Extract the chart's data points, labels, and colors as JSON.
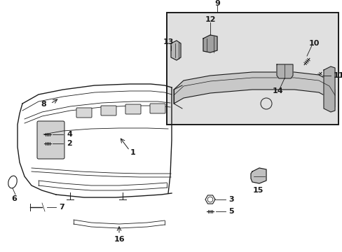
{
  "bg_color": "#ffffff",
  "line_color": "#1a1a1a",
  "inset_bg": "#e0e0e0",
  "fig_w": 4.89,
  "fig_h": 3.6,
  "dpi": 100
}
